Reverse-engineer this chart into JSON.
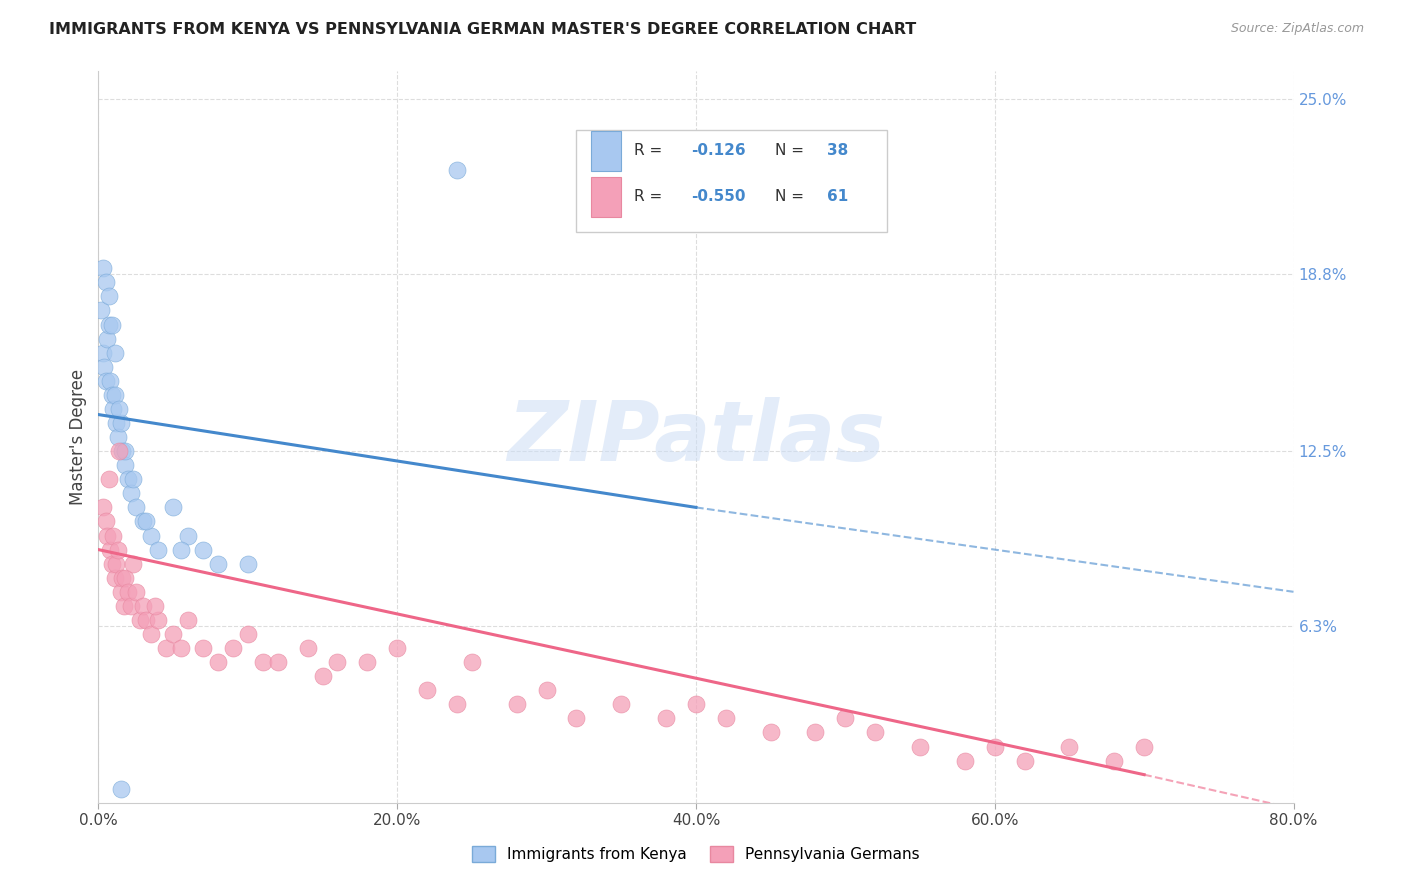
{
  "title": "IMMIGRANTS FROM KENYA VS PENNSYLVANIA GERMAN MASTER'S DEGREE CORRELATION CHART",
  "source": "Source: ZipAtlas.com",
  "ylabel": "Master's Degree",
  "ytick_labels": [
    "25.0%",
    "18.8%",
    "12.5%",
    "6.3%"
  ],
  "ytick_values": [
    25.0,
    18.8,
    12.5,
    6.3
  ],
  "xtick_labels": [
    "0.0%",
    "20.0%",
    "40.0%",
    "60.0%",
    "80.0%"
  ],
  "xtick_values": [
    0.0,
    20.0,
    40.0,
    60.0,
    80.0
  ],
  "xlim": [
    0.0,
    80.0
  ],
  "ylim": [
    0.0,
    26.0
  ],
  "legend1_label": "Immigrants from Kenya",
  "legend2_label": "Pennsylvania Germans",
  "R1": -0.126,
  "N1": 38,
  "R2": -0.55,
  "N2": 61,
  "blue_color": "#a8c8f0",
  "pink_color": "#f4a0b8",
  "blue_edge_color": "#7aaad8",
  "pink_edge_color": "#e888a0",
  "blue_line_color": "#4488cc",
  "pink_line_color": "#ee6688",
  "blue_scatter_x": [
    0.2,
    0.3,
    0.4,
    0.5,
    0.6,
    0.7,
    0.8,
    0.9,
    1.0,
    1.1,
    1.2,
    1.3,
    1.5,
    1.6,
    1.8,
    2.0,
    2.2,
    2.5,
    3.0,
    3.5,
    4.0,
    5.0,
    6.0,
    7.0,
    8.0,
    0.3,
    0.5,
    0.7,
    0.9,
    1.1,
    1.4,
    1.8,
    2.3,
    3.2,
    5.5,
    10.0,
    1.5,
    24.0
  ],
  "blue_scatter_y": [
    17.5,
    16.0,
    15.5,
    15.0,
    16.5,
    17.0,
    15.0,
    14.5,
    14.0,
    14.5,
    13.5,
    13.0,
    13.5,
    12.5,
    12.0,
    11.5,
    11.0,
    10.5,
    10.0,
    9.5,
    9.0,
    10.5,
    9.5,
    9.0,
    8.5,
    19.0,
    18.5,
    18.0,
    17.0,
    16.0,
    14.0,
    12.5,
    11.5,
    10.0,
    9.0,
    8.5,
    0.5,
    22.5
  ],
  "pink_scatter_x": [
    0.3,
    0.5,
    0.6,
    0.8,
    0.9,
    1.0,
    1.1,
    1.2,
    1.3,
    1.5,
    1.6,
    1.7,
    1.8,
    2.0,
    2.2,
    2.5,
    2.8,
    3.0,
    3.2,
    3.5,
    4.0,
    4.5,
    5.0,
    5.5,
    6.0,
    7.0,
    8.0,
    9.0,
    10.0,
    11.0,
    12.0,
    14.0,
    15.0,
    16.0,
    18.0,
    20.0,
    22.0,
    24.0,
    25.0,
    28.0,
    30.0,
    32.0,
    35.0,
    38.0,
    40.0,
    42.0,
    45.0,
    48.0,
    50.0,
    52.0,
    55.0,
    58.0,
    60.0,
    62.0,
    65.0,
    68.0,
    70.0,
    0.7,
    1.4,
    2.3,
    3.8
  ],
  "pink_scatter_y": [
    10.5,
    10.0,
    9.5,
    9.0,
    8.5,
    9.5,
    8.0,
    8.5,
    9.0,
    7.5,
    8.0,
    7.0,
    8.0,
    7.5,
    7.0,
    7.5,
    6.5,
    7.0,
    6.5,
    6.0,
    6.5,
    5.5,
    6.0,
    5.5,
    6.5,
    5.5,
    5.0,
    5.5,
    6.0,
    5.0,
    5.0,
    5.5,
    4.5,
    5.0,
    5.0,
    5.5,
    4.0,
    3.5,
    5.0,
    3.5,
    4.0,
    3.0,
    3.5,
    3.0,
    3.5,
    3.0,
    2.5,
    2.5,
    3.0,
    2.5,
    2.0,
    1.5,
    2.0,
    1.5,
    2.0,
    1.5,
    2.0,
    11.5,
    12.5,
    8.5,
    7.0
  ],
  "blue_line_x0": 0.0,
  "blue_line_x_solid_end": 40.0,
  "blue_line_x_dash_end": 80.0,
  "blue_line_y_start": 13.8,
  "blue_line_y_solid_end": 10.5,
  "blue_line_y_dash_end": 7.5,
  "pink_line_x0": 0.0,
  "pink_line_x_solid_end": 70.0,
  "pink_line_x_dash_end": 80.0,
  "pink_line_y_start": 9.0,
  "pink_line_y_solid_end": 1.0,
  "pink_line_y_dash_end": -0.2,
  "watermark_text": "ZIPatlas",
  "watermark_color": "#ccddf5",
  "background_color": "#ffffff",
  "grid_color": "#dddddd",
  "grid_style": "--"
}
